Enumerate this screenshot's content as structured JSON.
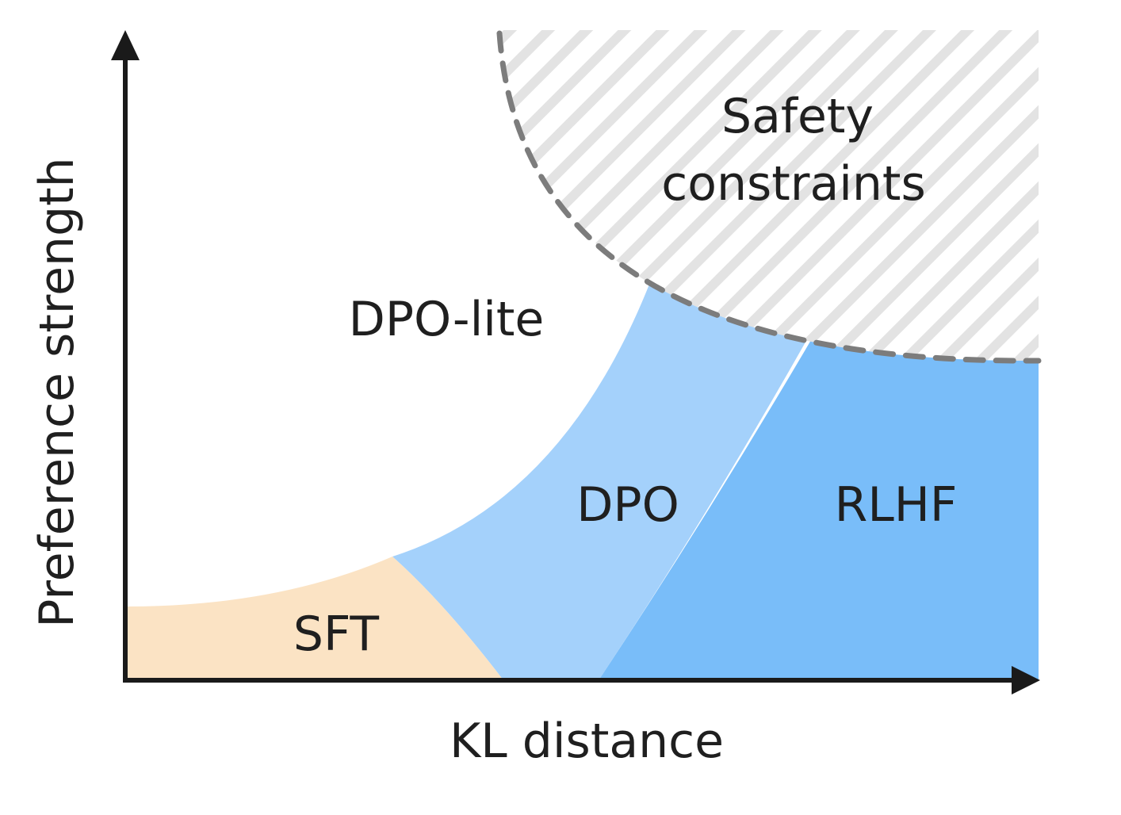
{
  "axes": {
    "x_label": "KL distance",
    "y_label": "Preference strength"
  },
  "regions": {
    "sft": "SFT",
    "dpo": "DPO",
    "rlhf": "RLHF",
    "dpo_lite": "DPO-lite",
    "safety": [
      "Safety",
      "constraints"
    ]
  }
}
